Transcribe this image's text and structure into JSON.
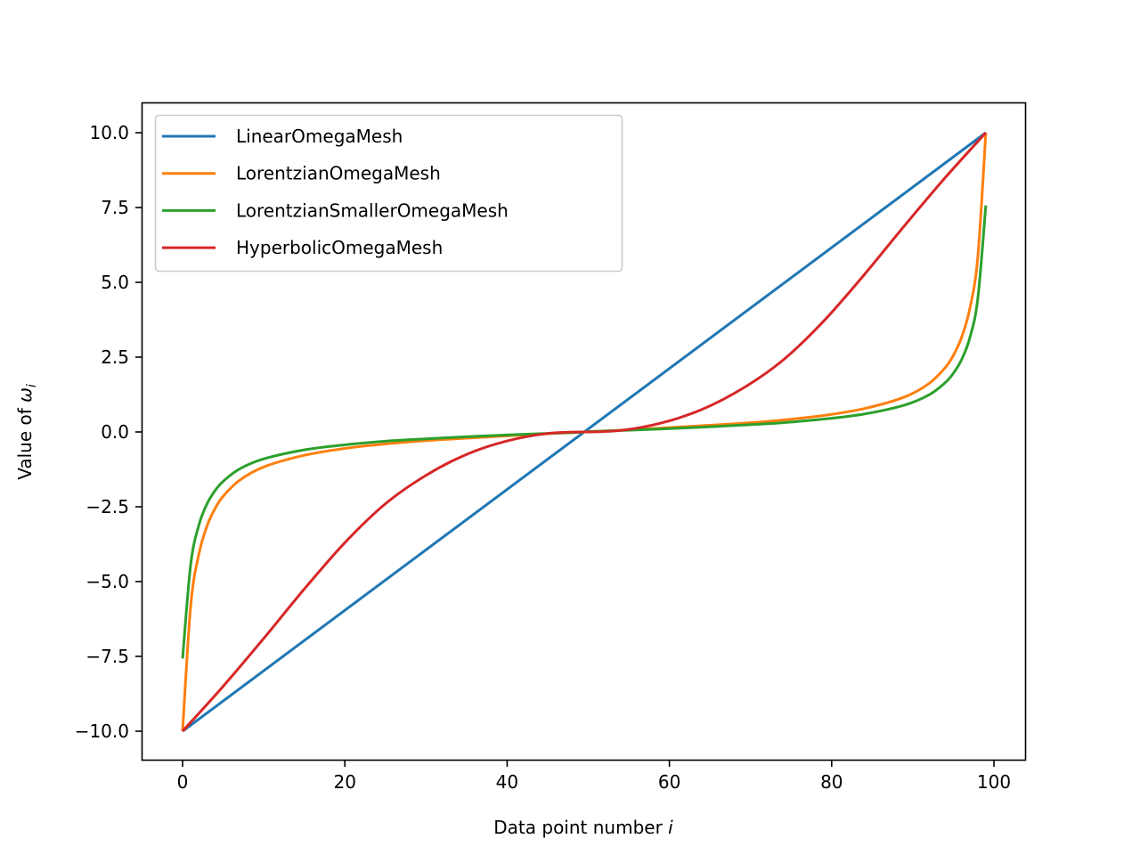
{
  "chart_data": {
    "type": "line",
    "title": "",
    "xlabel": "Data point number i",
    "ylabel": "Value of ω_i",
    "xlabel_parts": {
      "text": "Data point number ",
      "italic": "i"
    },
    "ylabel_parts": {
      "text": "Value of ",
      "italic": "ω",
      "subscript": "i"
    },
    "xlim": [
      -5,
      104
    ],
    "ylim": [
      -11,
      11
    ],
    "xticks": [
      0,
      20,
      40,
      60,
      80,
      100
    ],
    "xtick_labels": [
      "0",
      "20",
      "40",
      "60",
      "80",
      "100"
    ],
    "yticks": [
      10.0,
      7.5,
      5.0,
      2.5,
      0.0,
      -2.5,
      -5.0,
      -7.5,
      -10.0
    ],
    "ytick_labels": [
      "10.0",
      "7.5",
      "5.0",
      "2.5",
      "0.0",
      "−2.5",
      "−5.0",
      "−7.5",
      "−10.0"
    ],
    "grid": false,
    "legend_position": "upper left",
    "series": [
      {
        "name": "LinearOmegaMesh",
        "color": "#1f77b4",
        "x": [
          0,
          99
        ],
        "values": [
          -10.0,
          10.0
        ]
      },
      {
        "name": "LorentzianOmegaMesh",
        "color": "#ff7f0e",
        "x": [
          0,
          1,
          2,
          3,
          4,
          5,
          7,
          10,
          15,
          20,
          25,
          30,
          35,
          40,
          45,
          49,
          50,
          54,
          59,
          64,
          69,
          74,
          79,
          84,
          89,
          92,
          94,
          95,
          96,
          97,
          98,
          99
        ],
        "values": [
          -10.0,
          -5.81,
          -4.09,
          -3.15,
          -2.56,
          -2.15,
          -1.62,
          -1.17,
          -0.78,
          -0.55,
          -0.4,
          -0.29,
          -0.21,
          -0.13,
          -0.06,
          -0.01,
          0.01,
          0.06,
          0.13,
          0.21,
          0.29,
          0.4,
          0.55,
          0.78,
          1.17,
          1.62,
          2.15,
          2.56,
          3.15,
          4.09,
          5.81,
          10.0
        ]
      },
      {
        "name": "LorentzianSmallerOmegaMesh",
        "color": "#2ca02c",
        "x": [
          0,
          1,
          2,
          3,
          4,
          5,
          7,
          10,
          15,
          20,
          25,
          30,
          35,
          40,
          45,
          49,
          50,
          54,
          59,
          64,
          69,
          74,
          79,
          84,
          89,
          92,
          94,
          95,
          96,
          97,
          98,
          99
        ],
        "values": [
          -7.57,
          -4.43,
          -3.12,
          -2.41,
          -1.96,
          -1.65,
          -1.24,
          -0.9,
          -0.6,
          -0.43,
          -0.31,
          -0.23,
          -0.16,
          -0.1,
          -0.05,
          -0.01,
          0.01,
          0.05,
          0.1,
          0.16,
          0.23,
          0.31,
          0.43,
          0.6,
          0.9,
          1.24,
          1.65,
          1.96,
          2.41,
          3.12,
          4.43,
          7.57
        ]
      },
      {
        "name": "HyperbolicOmegaMesh",
        "color": "#d62728",
        "x": [
          0,
          5,
          10,
          15,
          20,
          25,
          30,
          35,
          40,
          45,
          49,
          50,
          54,
          59,
          64,
          69,
          74,
          79,
          84,
          89,
          94,
          99
        ],
        "values": [
          -10.0,
          -8.5,
          -6.9,
          -5.25,
          -3.7,
          -2.4,
          -1.45,
          -0.75,
          -0.3,
          -0.05,
          -0.001,
          0.001,
          0.05,
          0.3,
          0.75,
          1.45,
          2.4,
          3.7,
          5.25,
          6.9,
          8.5,
          10.0
        ]
      }
    ]
  },
  "legend": {
    "items": [
      {
        "label": "LinearOmegaMesh",
        "color": "#1f77b4"
      },
      {
        "label": "LorentzianOmegaMesh",
        "color": "#ff7f0e"
      },
      {
        "label": "LorentzianSmallerOmegaMesh",
        "color": "#2ca02c"
      },
      {
        "label": "HyperbolicOmegaMesh",
        "color": "#d62728"
      }
    ]
  }
}
